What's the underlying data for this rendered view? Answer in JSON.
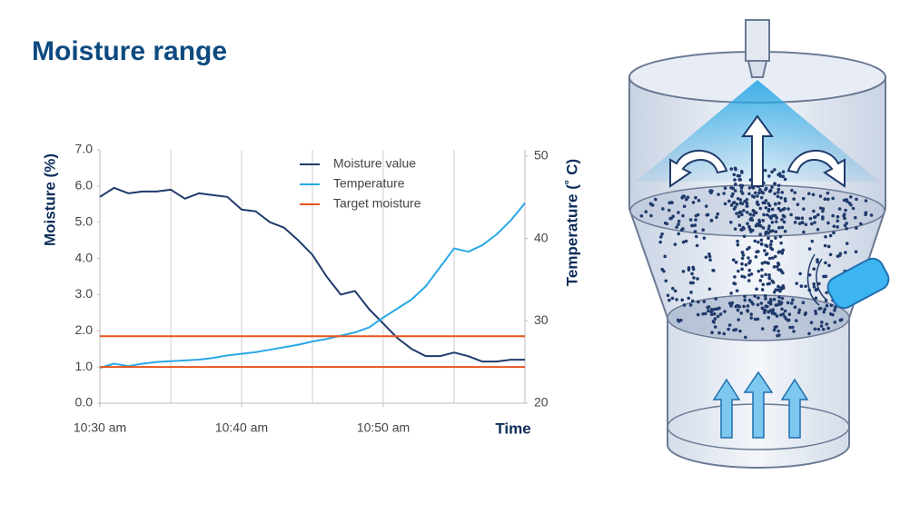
{
  "title": "Moisture range",
  "chart_data": {
    "type": "line",
    "x_label": "Time",
    "y_label": "Moisture (%)",
    "y2_label": "Temperature (˚ C)",
    "x": [
      630,
      631,
      632,
      633,
      634,
      635,
      636,
      637,
      638,
      639,
      640,
      641,
      642,
      643,
      644,
      645,
      646,
      647,
      648,
      649,
      650,
      651,
      652,
      653,
      654,
      655,
      656,
      657,
      658,
      659,
      660
    ],
    "xlim": [
      630,
      660
    ],
    "xticks": [
      {
        "value": 630,
        "label": "10:30 am"
      },
      {
        "value": 640,
        "label": "10:40 am"
      },
      {
        "value": 650,
        "label": "10:50 am"
      }
    ],
    "xgrid": [
      635,
      640,
      645,
      650,
      655
    ],
    "ylim": [
      0,
      7
    ],
    "yticks": [
      {
        "value": 0,
        "label": "0.0"
      },
      {
        "value": 1,
        "label": "1.0"
      },
      {
        "value": 2,
        "label": "2.0"
      },
      {
        "value": 3,
        "label": "3.0"
      },
      {
        "value": 4,
        "label": "4.0"
      },
      {
        "value": 5,
        "label": "5.0"
      },
      {
        "value": 6,
        "label": "6.0"
      },
      {
        "value": 7,
        "label": "7.0"
      }
    ],
    "y2lim": [
      20,
      50
    ],
    "y2ticks": [
      20,
      30,
      40,
      50
    ],
    "series": [
      {
        "name": "Moisture value",
        "color": "#1f3a6b",
        "values": [
          5.7,
          5.95,
          5.8,
          5.85,
          5.85,
          5.9,
          5.65,
          5.8,
          5.75,
          5.7,
          5.35,
          5.3,
          5.0,
          4.85,
          4.5,
          4.1,
          3.5,
          3.0,
          3.1,
          2.6,
          2.2,
          1.8,
          1.5,
          1.3,
          1.3,
          1.4,
          1.3,
          1.15,
          1.15,
          1.2,
          1.2
        ]
      },
      {
        "name": "Temperature",
        "color": "#2aa8e6",
        "axis": "y2",
        "values": [
          24.3,
          24.8,
          24.5,
          24.8,
          25.0,
          25.1,
          25.2,
          25.3,
          25.5,
          25.8,
          26.0,
          26.2,
          26.5,
          26.8,
          27.1,
          27.5,
          27.8,
          28.2,
          28.6,
          29.2,
          30.4,
          31.5,
          32.6,
          34.2,
          36.5,
          38.8,
          38.4,
          39.2,
          40.5,
          42.2,
          44.3
        ]
      },
      {
        "name": "Target moisture",
        "color": "#e8541e",
        "levels": [
          1.0,
          1.85
        ]
      }
    ],
    "legend": "top"
  }
}
